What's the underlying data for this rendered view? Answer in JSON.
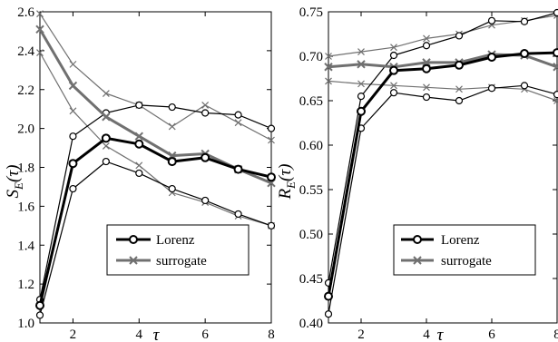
{
  "chart_data": [
    {
      "type": "line",
      "xlabel": "τ",
      "ylabel": "S_E(τ)",
      "ylabel_main": "S",
      "ylabel_sub": "E",
      "ylabel_arg": "(τ)",
      "xlim": [
        1,
        8
      ],
      "ylim": [
        1.0,
        2.6
      ],
      "xticks": [
        2,
        4,
        6,
        8
      ],
      "yticks": [
        1.0,
        1.2,
        1.4,
        1.6,
        1.8,
        2.0,
        2.2,
        2.4,
        2.6
      ],
      "ytick_labels": [
        "1.0",
        "1.2",
        "1.4",
        "1.6",
        "1.8",
        "2.0",
        "2.2",
        "2.4",
        "2.6"
      ],
      "grid": false,
      "legend_position": "bottom-center",
      "x": [
        1,
        2,
        3,
        4,
        5,
        6,
        7,
        8
      ],
      "series": [
        {
          "name": "Lorenz",
          "role": "mean",
          "color": "#000000",
          "marker": "circle",
          "values": [
            1.09,
            1.82,
            1.95,
            1.92,
            1.83,
            1.85,
            1.79,
            1.75
          ]
        },
        {
          "name": "",
          "role": "band-upper",
          "group": "Lorenz",
          "color": "#000000",
          "marker": "circle",
          "values": [
            1.12,
            1.96,
            2.08,
            2.12,
            2.11,
            2.08,
            2.07,
            2.0
          ]
        },
        {
          "name": "",
          "role": "band-lower",
          "group": "Lorenz",
          "color": "#000000",
          "marker": "circle",
          "values": [
            1.04,
            1.69,
            1.83,
            1.77,
            1.69,
            1.63,
            1.56,
            1.5
          ]
        },
        {
          "name": "surrogate",
          "role": "mean",
          "color": "#707070",
          "marker": "cross",
          "values": [
            2.51,
            2.22,
            2.06,
            1.96,
            1.86,
            1.87,
            1.79,
            1.72
          ]
        },
        {
          "name": "",
          "role": "band-upper",
          "group": "surrogate",
          "color": "#707070",
          "marker": "cross",
          "values": [
            2.59,
            2.33,
            2.18,
            2.12,
            2.01,
            2.12,
            2.03,
            1.94
          ]
        },
        {
          "name": "",
          "role": "band-lower",
          "group": "surrogate",
          "color": "#707070",
          "marker": "cross",
          "values": [
            2.39,
            2.09,
            1.91,
            1.81,
            1.67,
            1.62,
            1.55,
            1.5
          ]
        }
      ]
    },
    {
      "type": "line",
      "xlabel": "τ",
      "ylabel": "R_E(τ)",
      "ylabel_main": "R",
      "ylabel_sub": "E",
      "ylabel_arg": "(τ)",
      "xlim": [
        1,
        8
      ],
      "ylim": [
        0.4,
        0.75
      ],
      "xticks": [
        2,
        4,
        6,
        8
      ],
      "yticks": [
        0.4,
        0.45,
        0.5,
        0.55,
        0.6,
        0.65,
        0.7,
        0.75
      ],
      "ytick_labels": [
        "0.40",
        "0.45",
        "0.50",
        "0.55",
        "0.60",
        "0.65",
        "0.70",
        "0.75"
      ],
      "grid": false,
      "legend_position": "bottom-center",
      "x": [
        1,
        2,
        3,
        4,
        5,
        6,
        7,
        8
      ],
      "series": [
        {
          "name": "Lorenz",
          "role": "mean",
          "color": "#000000",
          "marker": "circle",
          "values": [
            0.43,
            0.638,
            0.684,
            0.686,
            0.69,
            0.699,
            0.703,
            0.704
          ]
        },
        {
          "name": "",
          "role": "band-upper",
          "group": "Lorenz",
          "color": "#000000",
          "marker": "circle",
          "values": [
            0.445,
            0.655,
            0.701,
            0.712,
            0.723,
            0.74,
            0.739,
            0.749
          ]
        },
        {
          "name": "",
          "role": "band-lower",
          "group": "Lorenz",
          "color": "#000000",
          "marker": "circle",
          "values": [
            0.41,
            0.619,
            0.659,
            0.654,
            0.65,
            0.664,
            0.667,
            0.657
          ]
        },
        {
          "name": "surrogate",
          "role": "mean",
          "color": "#707070",
          "marker": "cross",
          "values": [
            0.688,
            0.691,
            0.688,
            0.693,
            0.693,
            0.702,
            0.701,
            0.688
          ]
        },
        {
          "name": "",
          "role": "band-upper",
          "group": "surrogate",
          "color": "#707070",
          "marker": "cross",
          "values": [
            0.7,
            0.705,
            0.71,
            0.72,
            0.725,
            0.735,
            0.74,
            0.746
          ]
        },
        {
          "name": "",
          "role": "band-lower",
          "group": "surrogate",
          "color": "#707070",
          "marker": "cross",
          "values": [
            0.672,
            0.669,
            0.667,
            0.665,
            0.663,
            0.665,
            0.663,
            0.65
          ]
        }
      ]
    }
  ],
  "legend": {
    "lorenz_label": "Lorenz",
    "surrogate_label": "surrogate"
  }
}
